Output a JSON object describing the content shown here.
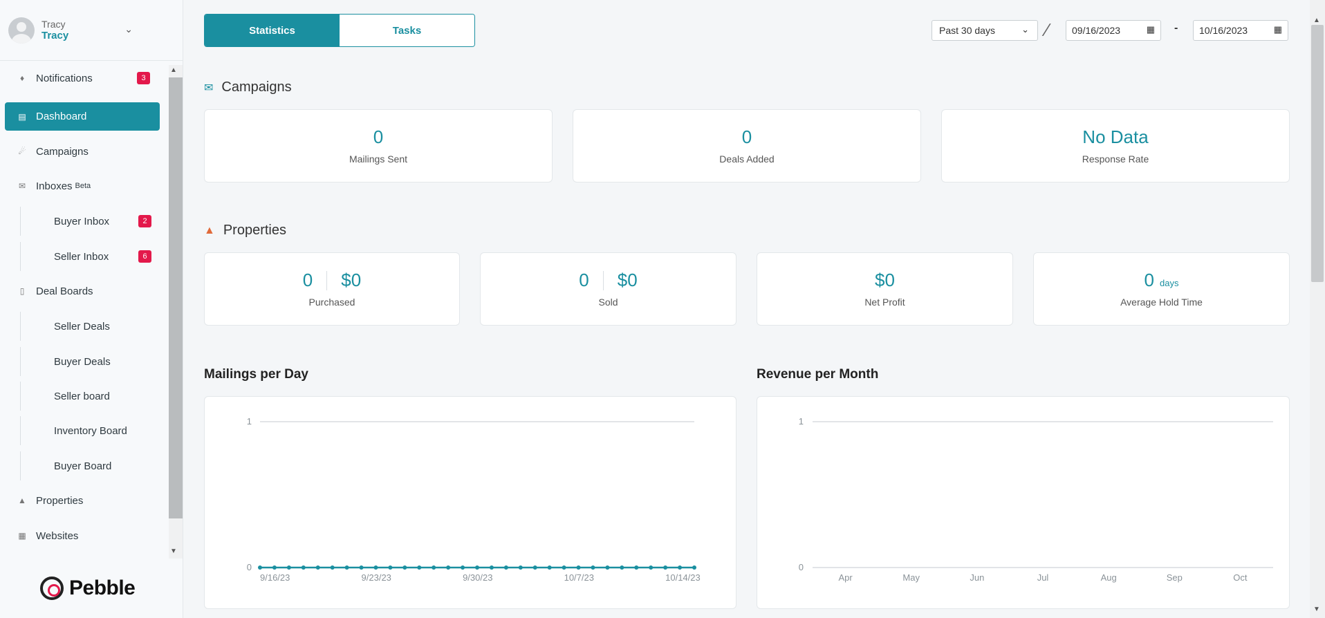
{
  "user": {
    "name_top": "Tracy",
    "name_bottom": "Tracy"
  },
  "nav": {
    "items": [
      {
        "label": "Notifications",
        "badge": "3"
      },
      {
        "label": "Dashboard"
      },
      {
        "label": "Campaigns"
      },
      {
        "label": "Inboxes",
        "tag": "Beta"
      },
      {
        "label": "Buyer Inbox",
        "badge": "2"
      },
      {
        "label": "Seller Inbox",
        "badge": "6"
      },
      {
        "label": "Deal Boards"
      },
      {
        "label": "Seller Deals"
      },
      {
        "label": "Buyer Deals"
      },
      {
        "label": "Seller board"
      },
      {
        "label": "Inventory Board"
      },
      {
        "label": "Buyer Board"
      },
      {
        "label": "Properties"
      },
      {
        "label": "Websites"
      }
    ]
  },
  "brand": {
    "name": "Pebble"
  },
  "tabs": {
    "statistics": "Statistics",
    "tasks": "Tasks"
  },
  "filters": {
    "range": "Past 30 days",
    "date_from": "09/16/2023",
    "date_sep": "-",
    "date_to": "10/16/2023"
  },
  "campaigns": {
    "title": "Campaigns",
    "cards": [
      {
        "value": "0",
        "label": "Mailings Sent"
      },
      {
        "value": "0",
        "label": "Deals Added"
      },
      {
        "value": "No Data",
        "label": "Response Rate"
      }
    ]
  },
  "properties": {
    "title": "Properties",
    "purchased": {
      "count": "0",
      "amount": "$0",
      "label": "Purchased"
    },
    "sold": {
      "count": "0",
      "amount": "$0",
      "label": "Sold"
    },
    "net": {
      "amount": "$0",
      "label": "Net Profit"
    },
    "hold": {
      "value": "0",
      "unit": "days",
      "label": "Average Hold Time"
    }
  },
  "colors": {
    "accent": "#1a8fa0",
    "badge": "#e3194b"
  },
  "chart_data": [
    {
      "type": "line",
      "title": "Mailings per Day",
      "x_tick_labels": [
        "9/16/23",
        "9/23/23",
        "9/30/23",
        "10/7/23",
        "10/14/23"
      ],
      "ylim": [
        0,
        1
      ],
      "y_ticks": [
        "0",
        "1"
      ],
      "x": [
        "9/16/23",
        "9/17/23",
        "9/18/23",
        "9/19/23",
        "9/20/23",
        "9/21/23",
        "9/22/23",
        "9/23/23",
        "9/24/23",
        "9/25/23",
        "9/26/23",
        "9/27/23",
        "9/28/23",
        "9/29/23",
        "9/30/23",
        "10/1/23",
        "10/2/23",
        "10/3/23",
        "10/4/23",
        "10/5/23",
        "10/6/23",
        "10/7/23",
        "10/8/23",
        "10/9/23",
        "10/10/23",
        "10/11/23",
        "10/12/23",
        "10/13/23",
        "10/14/23",
        "10/15/23",
        "10/16/23"
      ],
      "values": [
        0,
        0,
        0,
        0,
        0,
        0,
        0,
        0,
        0,
        0,
        0,
        0,
        0,
        0,
        0,
        0,
        0,
        0,
        0,
        0,
        0,
        0,
        0,
        0,
        0,
        0,
        0,
        0,
        0,
        0,
        0
      ]
    },
    {
      "type": "line",
      "title": "Revenue per Month",
      "categories": [
        "Apr",
        "May",
        "Jun",
        "Jul",
        "Aug",
        "Sep",
        "Oct"
      ],
      "ylim": [
        0,
        1
      ],
      "y_ticks": [
        "0",
        "1"
      ],
      "values": [
        0,
        0,
        0,
        0,
        0,
        0,
        0
      ]
    }
  ]
}
